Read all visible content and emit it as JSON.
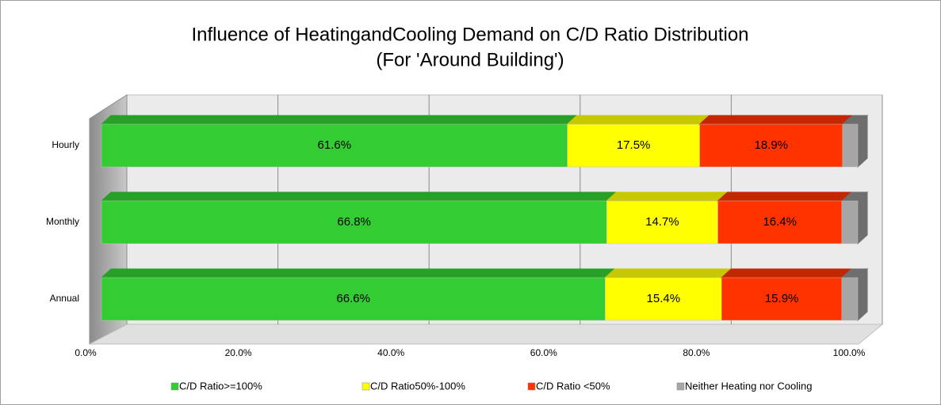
{
  "chart_data": {
    "type": "bar3d_stacked_horizontal",
    "title": "Influence of HeatingandCooling Demand on C/D Ratio Distribution",
    "subtitle": "(For 'Around Building')",
    "categories": [
      "Hourly",
      "Monthly",
      "Annual"
    ],
    "series": [
      {
        "name": "C/D Ratio>=100%",
        "color": "#33cc33",
        "values": [
          61.6,
          66.8,
          66.6
        ],
        "value_labels": [
          "61.6%",
          "66.8%",
          "66.6%"
        ]
      },
      {
        "name": "C/D Ratio50%-100%",
        "color": "#ffff00",
        "values": [
          17.5,
          14.7,
          15.4
        ],
        "value_labels": [
          "17.5%",
          "14.7%",
          "15.4%"
        ]
      },
      {
        "name": "C/D Ratio <50%",
        "color": "#ff3300",
        "values": [
          18.9,
          16.4,
          15.9
        ],
        "value_labels": [
          "18.9%",
          "16.4%",
          "15.9%"
        ]
      },
      {
        "name": "Neither Heating nor Cooling",
        "color": "#a6a6a6",
        "values": [
          2.0,
          2.1,
          2.1
        ]
      }
    ],
    "xlim": [
      0,
      100
    ],
    "xticks": [
      {
        "value": 0,
        "label": "0.0%"
      },
      {
        "value": 20,
        "label": "20.0%"
      },
      {
        "value": 40,
        "label": "40.0%"
      },
      {
        "value": 60,
        "label": "60.0%"
      },
      {
        "value": 80,
        "label": "80.0%"
      },
      {
        "value": 100,
        "label": "100.0%"
      }
    ],
    "grid": true,
    "legend": "bottom"
  }
}
